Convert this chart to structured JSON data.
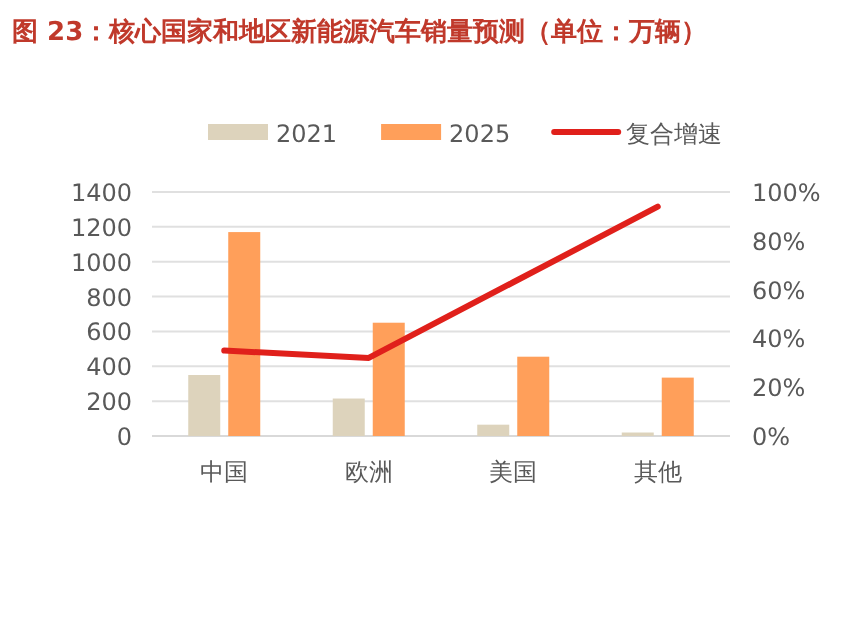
{
  "chart_data": {
    "type": "bar",
    "title": "图 23：核心国家和地区新能源汽车销量预测（单位：万辆）",
    "categories": [
      "中国",
      "欧洲",
      "美国",
      "其他"
    ],
    "series": [
      {
        "name": "2021",
        "color": "#ddd3bc",
        "values": [
          350,
          215,
          65,
          20
        ]
      },
      {
        "name": "2025",
        "color": "#ff9f5a",
        "values": [
          1170,
          650,
          455,
          335
        ]
      },
      {
        "name": "复合增速",
        "type": "line",
        "axis": "y2",
        "color": "#e0201b",
        "values": [
          35,
          32,
          63,
          94
        ]
      }
    ],
    "ylim": [
      0,
      1400
    ],
    "yticks": [
      0,
      200,
      400,
      600,
      800,
      1000,
      1200,
      1400
    ],
    "y2lim": [
      0,
      100
    ],
    "y2ticks": [
      {
        "value": 0,
        "label": "0%"
      },
      {
        "value": 20,
        "label": "20%"
      },
      {
        "value": 40,
        "label": "40%"
      },
      {
        "value": 60,
        "label": "60%"
      },
      {
        "value": 80,
        "label": "80%"
      },
      {
        "value": 100,
        "label": "100%"
      }
    ],
    "grid": "y",
    "legend": "top"
  }
}
